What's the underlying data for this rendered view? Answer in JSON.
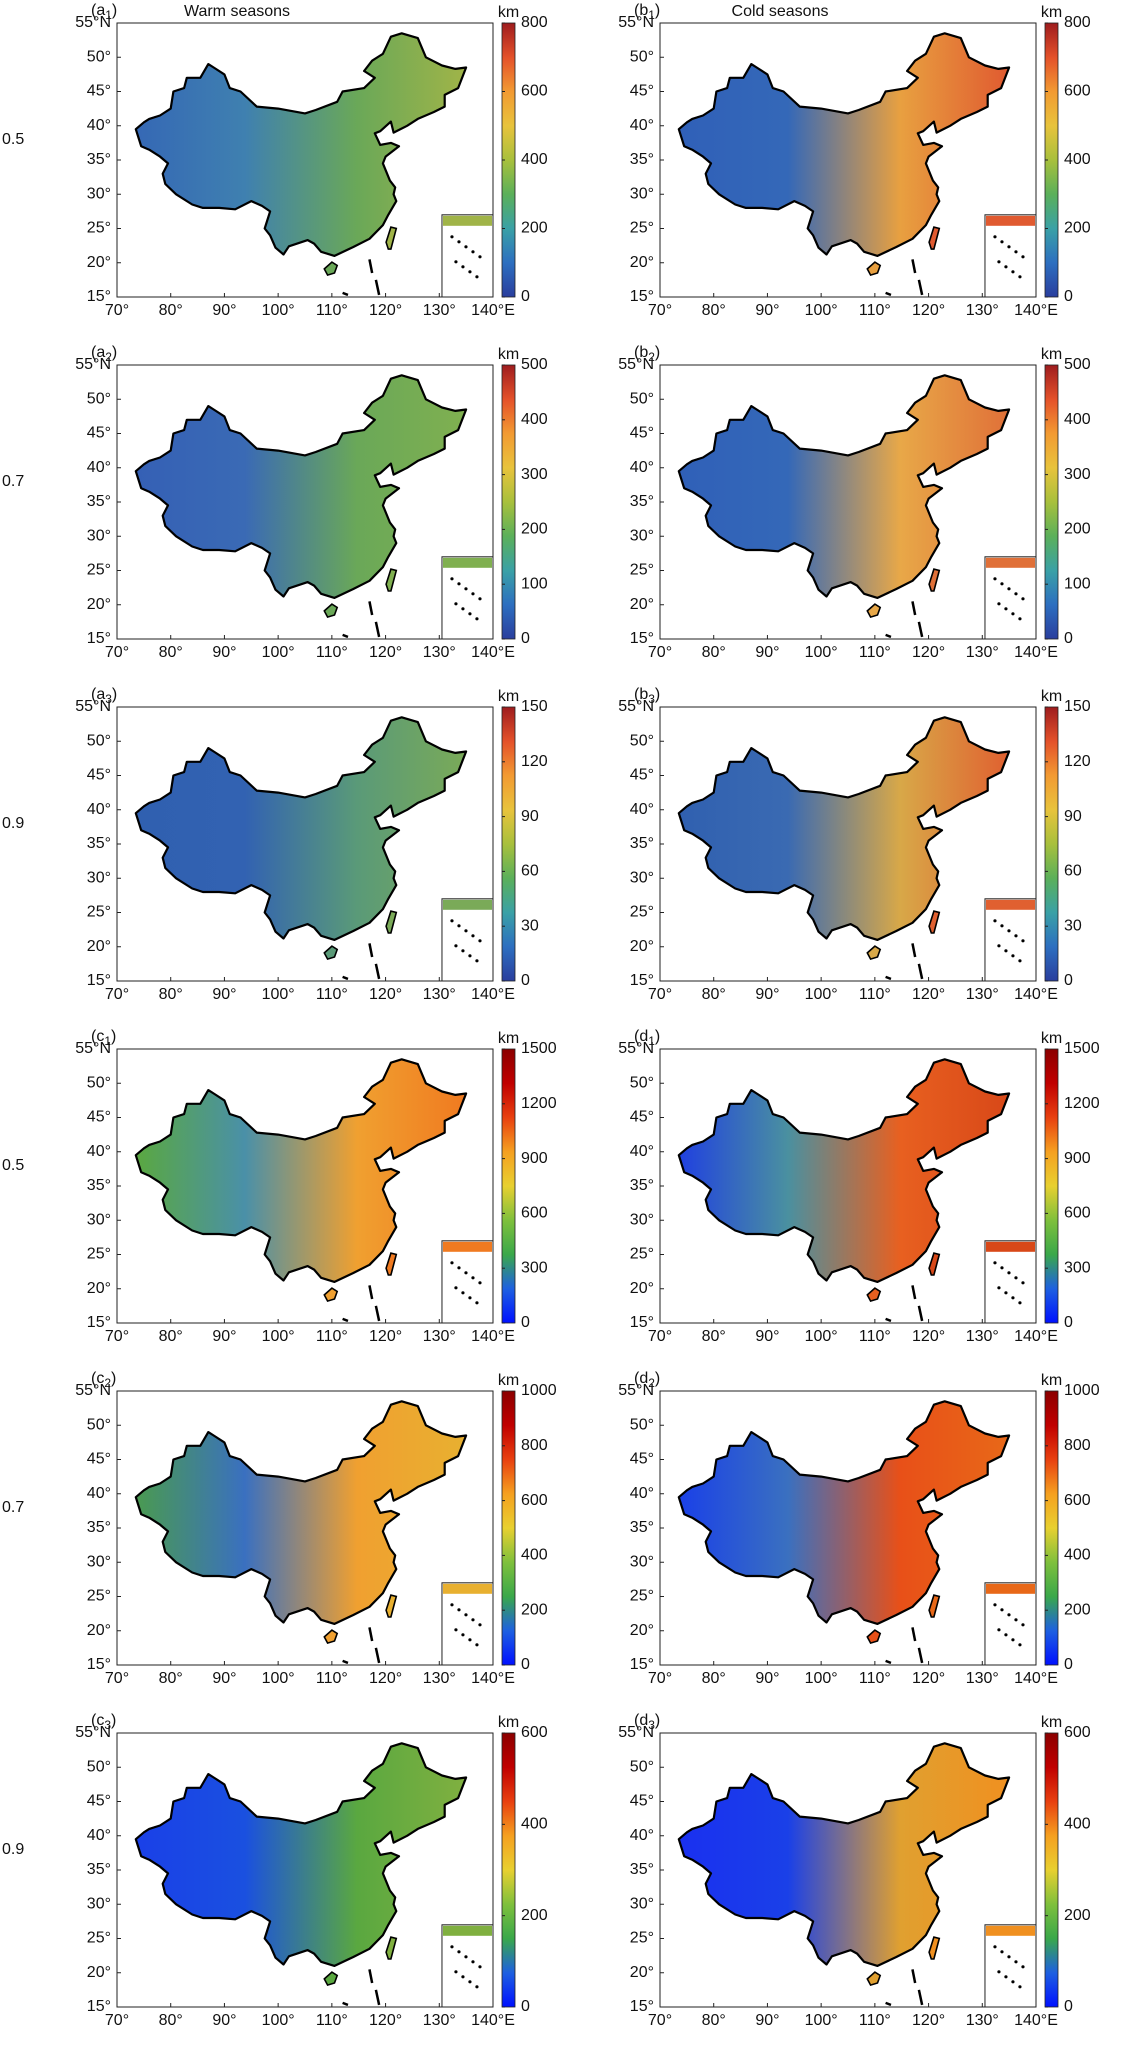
{
  "column_titles": [
    "Warm seasons",
    "Cold seasons"
  ],
  "row_labels": [
    "0.5",
    "0.7",
    "0.9",
    "0.5",
    "0.7",
    "0.9"
  ],
  "axes": {
    "xlim": [
      70,
      140
    ],
    "ylim": [
      15,
      55
    ],
    "xticks": [
      {
        "value": 70,
        "label": "70°"
      },
      {
        "value": 80,
        "label": "80°"
      },
      {
        "value": 90,
        "label": "90°"
      },
      {
        "value": 100,
        "label": "100°"
      },
      {
        "value": 110,
        "label": "110°"
      },
      {
        "value": 120,
        "label": "120°"
      },
      {
        "value": 130,
        "label": "130°"
      },
      {
        "value": 140,
        "label": "140°E"
      }
    ],
    "yticks": [
      {
        "value": 15,
        "label": "15°"
      },
      {
        "value": 20,
        "label": "20°"
      },
      {
        "value": 25,
        "label": "25°"
      },
      {
        "value": 30,
        "label": "30°"
      },
      {
        "value": 35,
        "label": "35°"
      },
      {
        "value": 40,
        "label": "40°"
      },
      {
        "value": 45,
        "label": "45°"
      },
      {
        "value": 50,
        "label": "50°"
      },
      {
        "value": 55,
        "label": "55°N"
      }
    ]
  },
  "panels": [
    {
      "label": [
        "(a",
        "1",
        ")"
      ],
      "colorbar": {
        "label": "km",
        "lim": [
          0,
          800
        ],
        "ticks": [
          0,
          200,
          400,
          600,
          800
        ]
      }
    },
    {
      "label": [
        "(b",
        "1",
        ")"
      ],
      "colorbar": {
        "label": "km",
        "lim": [
          0,
          800
        ],
        "ticks": [
          0,
          200,
          400,
          600,
          800
        ]
      }
    },
    {
      "label": [
        "(a",
        "2",
        ")"
      ],
      "colorbar": {
        "label": "km",
        "lim": [
          0,
          500
        ],
        "ticks": [
          0,
          100,
          200,
          300,
          400,
          500
        ]
      }
    },
    {
      "label": [
        "(b",
        "2",
        ")"
      ],
      "colorbar": {
        "label": "km",
        "lim": [
          0,
          500
        ],
        "ticks": [
          0,
          100,
          200,
          300,
          400,
          500
        ]
      }
    },
    {
      "label": [
        "(a",
        "3",
        ")"
      ],
      "colorbar": {
        "label": "km",
        "lim": [
          0,
          150
        ],
        "ticks": [
          0,
          30,
          60,
          90,
          120,
          150
        ]
      }
    },
    {
      "label": [
        "(b",
        "3",
        ")"
      ],
      "colorbar": {
        "label": "km",
        "lim": [
          0,
          150
        ],
        "ticks": [
          0,
          30,
          60,
          90,
          120,
          150
        ]
      }
    },
    {
      "label": [
        "(c",
        "1",
        ")"
      ],
      "colorbar": {
        "label": "km",
        "lim": [
          0,
          1500
        ],
        "ticks": [
          0,
          300,
          600,
          900,
          1200,
          1500
        ]
      }
    },
    {
      "label": [
        "(d",
        "1",
        ")"
      ],
      "colorbar": {
        "label": "km",
        "lim": [
          0,
          1500
        ],
        "ticks": [
          0,
          300,
          600,
          900,
          1200,
          1500
        ]
      }
    },
    {
      "label": [
        "(c",
        "2",
        ")"
      ],
      "colorbar": {
        "label": "km",
        "lim": [
          0,
          1000
        ],
        "ticks": [
          0,
          200,
          400,
          600,
          800,
          1000
        ]
      }
    },
    {
      "label": [
        "(d",
        "2",
        ")"
      ],
      "colorbar": {
        "label": "km",
        "lim": [
          0,
          1000
        ],
        "ticks": [
          0,
          200,
          400,
          600,
          800,
          1000
        ]
      }
    },
    {
      "label": [
        "(c",
        "3",
        ")"
      ],
      "colorbar": {
        "label": "km",
        "lim": [
          0,
          600
        ],
        "ticks": [
          0,
          200,
          400,
          600
        ]
      }
    },
    {
      "label": [
        "(d",
        "3",
        ")"
      ],
      "colorbar": {
        "label": "km",
        "lim": [
          0,
          600
        ],
        "ticks": [
          0,
          200,
          400,
          600
        ]
      }
    }
  ]
}
